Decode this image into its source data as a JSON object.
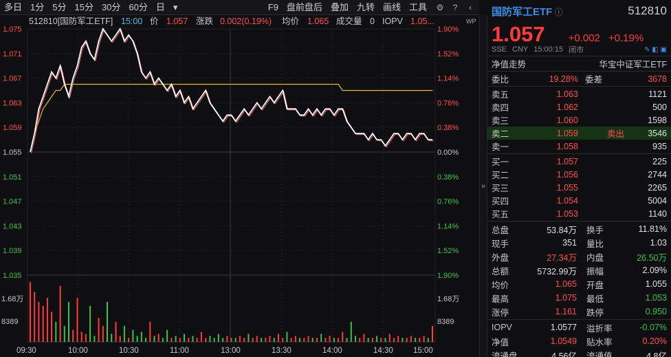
{
  "toolbar": {
    "items": [
      "多日",
      "1分",
      "5分",
      "15分",
      "30分",
      "60分",
      "日"
    ],
    "right": [
      "F9",
      "盘前盘后",
      "叠加",
      "九转",
      "画线",
      "工具"
    ]
  },
  "chart": {
    "header": {
      "code_name": "512810[国防军工ETF]",
      "time": "15:00",
      "price_label": "价",
      "price": "1.057",
      "chg_label": "涨跌",
      "chg": "0.002(0.19%)",
      "avg_label": "均价",
      "avg": "1.065",
      "vol_label": "成交量",
      "vol": "0",
      "iopv_label": "IOPV",
      "iopv": "1.05..."
    },
    "left_ticks": [
      "1.075",
      "1.071",
      "1.067",
      "1.063",
      "1.059",
      "1.055",
      "1.051",
      "1.047",
      "1.043",
      "1.039",
      "1.035"
    ],
    "right_ticks": [
      "1.90%",
      "1.52%",
      "1.14%",
      "0.76%",
      "0.38%",
      "0.00%",
      "0.38%",
      "0.76%",
      "1.14%",
      "1.52%",
      "1.90%"
    ],
    "vol_ticks_left": [
      "1.68万",
      "8389"
    ],
    "vol_ticks_right": [
      "1.68万",
      "8389"
    ],
    "time_ticks": [
      "09:30",
      "10:00",
      "10:30",
      "11:00",
      "13:00",
      "13:30",
      "14:00",
      "14:30",
      "15:00"
    ],
    "colors": {
      "price": "#ffffff",
      "avg": "#e8b830",
      "up": "#ff3b3b",
      "down": "#3ac24a"
    },
    "price_series": [
      1.055,
      1.058,
      1.062,
      1.064,
      1.066,
      1.068,
      1.067,
      1.069,
      1.066,
      1.064,
      1.067,
      1.069,
      1.072,
      1.073,
      1.071,
      1.07,
      1.073,
      1.075,
      1.074,
      1.073,
      1.074,
      1.075,
      1.073,
      1.074,
      1.073,
      1.071,
      1.068,
      1.067,
      1.068,
      1.066,
      1.067,
      1.066,
      1.065,
      1.066,
      1.064,
      1.065,
      1.063,
      1.064,
      1.062,
      1.063,
      1.064,
      1.065,
      1.063,
      1.062,
      1.061,
      1.06,
      1.061,
      1.061,
      1.06,
      1.061,
      1.062,
      1.061,
      1.062,
      1.063,
      1.062,
      1.063,
      1.064,
      1.063,
      1.064,
      1.065,
      1.062,
      1.062,
      1.062,
      1.061,
      1.061,
      1.062,
      1.061,
      1.062,
      1.061,
      1.062,
      1.062,
      1.061,
      1.062,
      1.062,
      1.06,
      1.059,
      1.058,
      1.058,
      1.058,
      1.057,
      1.058,
      1.057,
      1.057,
      1.056,
      1.057,
      1.058,
      1.058,
      1.057,
      1.058,
      1.058,
      1.057,
      1.058,
      1.058,
      1.057,
      1.057
    ],
    "avg_series": [
      1.055,
      1.058,
      1.06,
      1.062,
      1.063,
      1.064,
      1.065,
      1.065,
      1.066,
      1.066,
      1.066,
      1.066,
      1.066,
      1.066,
      1.066,
      1.066,
      1.066,
      1.066,
      1.066,
      1.066,
      1.066,
      1.066,
      1.066,
      1.066,
      1.066,
      1.066,
      1.066,
      1.066,
      1.066,
      1.066,
      1.066,
      1.066,
      1.066,
      1.066,
      1.066,
      1.066,
      1.066,
      1.066,
      1.066,
      1.066,
      1.066,
      1.066,
      1.066,
      1.066,
      1.066,
      1.066,
      1.066,
      1.066,
      1.066,
      1.066,
      1.066,
      1.066,
      1.066,
      1.066,
      1.066,
      1.066,
      1.066,
      1.066,
      1.066,
      1.066,
      1.066,
      1.066,
      1.066,
      1.066,
      1.066,
      1.066,
      1.066,
      1.066,
      1.066,
      1.066,
      1.066,
      1.066,
      1.066,
      1.065,
      1.065,
      1.065,
      1.065,
      1.065,
      1.065,
      1.065,
      1.065,
      1.065,
      1.065,
      1.065,
      1.065,
      1.065,
      1.065,
      1.065,
      1.065,
      1.065,
      1.065,
      1.065,
      1.065,
      1.065,
      1.065
    ],
    "vol_series": [
      30,
      25,
      20,
      18,
      22,
      15,
      10,
      28,
      8,
      20,
      6,
      22,
      5,
      4,
      18,
      3,
      12,
      8,
      20,
      4,
      10,
      3,
      8,
      2,
      6,
      3,
      5,
      2,
      10,
      3,
      4,
      2,
      6,
      2,
      3,
      2,
      4,
      2,
      3,
      2,
      5,
      2,
      3,
      2,
      4,
      2,
      3,
      2,
      2,
      3,
      2,
      4,
      2,
      3,
      2,
      2,
      3,
      2,
      4,
      2,
      5,
      2,
      3,
      2,
      2,
      3,
      2,
      2,
      4,
      2,
      3,
      2,
      2,
      5,
      2,
      10,
      3,
      2,
      4,
      2,
      2,
      3,
      2,
      2,
      4,
      2,
      3,
      2,
      2,
      3,
      2,
      2,
      3,
      2,
      8
    ]
  },
  "panel": {
    "name": "国防军工ETF",
    "code": "512810",
    "price": "1.057",
    "chg": "+0.002",
    "chgp": "+0.19%",
    "meta": [
      "SSE",
      "CNY",
      "15:00:15",
      "闭市"
    ],
    "nav_label": "净值走势",
    "index": "华宝中证军工ETF",
    "ratio": {
      "l1": "委比",
      "v1": "19.28%",
      "l2": "委差",
      "v2": "3678"
    },
    "asks": [
      {
        "l": "卖五",
        "p": "1.063",
        "v": "1121"
      },
      {
        "l": "卖四",
        "p": "1.062",
        "v": "500"
      },
      {
        "l": "卖三",
        "p": "1.060",
        "v": "1598"
      },
      {
        "l": "卖二",
        "p": "1.059",
        "tag": "卖出",
        "v": "3546"
      },
      {
        "l": "卖一",
        "p": "1.058",
        "v": "935"
      }
    ],
    "bids": [
      {
        "l": "买一",
        "p": "1.057",
        "v": "225"
      },
      {
        "l": "买二",
        "p": "1.056",
        "v": "2744"
      },
      {
        "l": "买三",
        "p": "1.055",
        "v": "2265"
      },
      {
        "l": "买四",
        "p": "1.054",
        "v": "5004"
      },
      {
        "l": "买五",
        "p": "1.053",
        "v": "1140"
      }
    ],
    "stats": [
      {
        "l1": "总盘",
        "v1": "53.84万",
        "l2": "换手",
        "v2": "11.81%"
      },
      {
        "l1": "现手",
        "v1": "351",
        "l2": "量比",
        "v2": "1.03"
      },
      {
        "l1": "外盘",
        "v1": "27.34万",
        "l2": "内盘",
        "v2": "26.50万"
      },
      {
        "l1": "总额",
        "v1": "5732.99万",
        "l2": "振幅",
        "v2": "2.09%"
      },
      {
        "l1": "均价",
        "v1": "1.065",
        "l2": "开盘",
        "v2": "1.055"
      },
      {
        "l1": "最高",
        "v1": "1.075",
        "l2": "最低",
        "v2": "1.053"
      },
      {
        "l1": "涨停",
        "v1": "1.161",
        "l2": "跌停",
        "v2": "0.950"
      }
    ],
    "extra": [
      {
        "l1": "IOPV",
        "v1": "1.0577",
        "l2": "溢折率",
        "v2": "-0.07%"
      },
      {
        "l1": "净值",
        "v1": "1.0549",
        "l2": "贴水率",
        "v2": "0.20%"
      },
      {
        "l1": "流通盘",
        "v1": "4.56亿",
        "l2": "流通值",
        "v2": "4.8亿"
      }
    ]
  }
}
